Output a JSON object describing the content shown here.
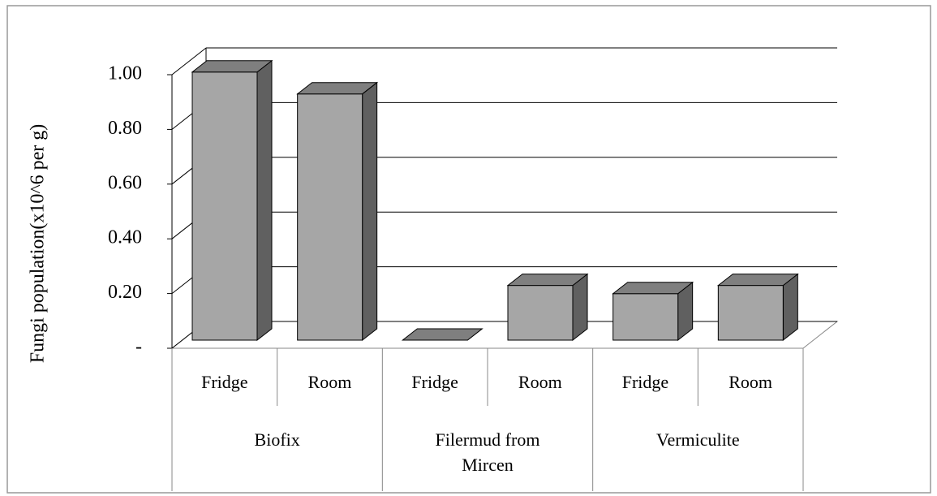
{
  "chart_data": {
    "type": "bar3d",
    "y_label": "Fungi population(x10^6 per g)",
    "groups": [
      "Biofix",
      "Filermud from Mircen",
      "Vermiculite"
    ],
    "categories": [
      "Fridge",
      "Room",
      "Fridge",
      "Room",
      "Fridge",
      "Room"
    ],
    "values": [
      0.98,
      0.9,
      0,
      0.2,
      0.17,
      0.2
    ],
    "color": "#a6a6a6",
    "ylim": [
      0,
      1
    ],
    "yticks": [
      {
        "value": 0,
        "label": "-"
      },
      {
        "value": 0.2,
        "label": "0.20"
      },
      {
        "value": 0.4,
        "label": "0.40"
      },
      {
        "value": 0.6,
        "label": "0.60"
      },
      {
        "value": 0.8,
        "label": "0.80"
      },
      {
        "value": 1,
        "label": "1.00"
      }
    ],
    "grid": true
  }
}
